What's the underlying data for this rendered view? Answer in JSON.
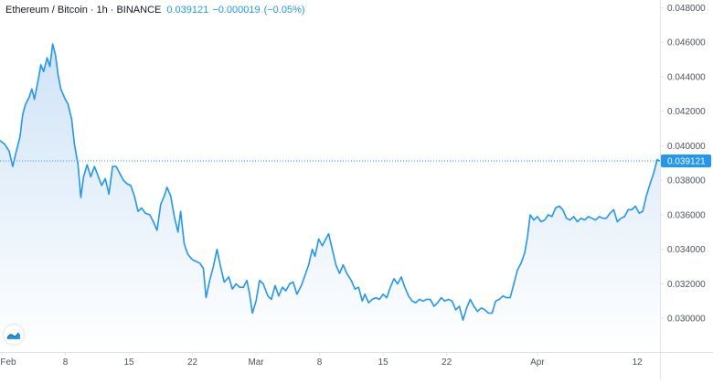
{
  "header": {
    "pair": "Ethereum / Bitcoin",
    "interval": "1h",
    "exchange": "BINANCE",
    "last_price": "0.039121",
    "change": "−0.000019",
    "change_pct": "(−0.05%)"
  },
  "colors": {
    "line": "#2196f3",
    "fill_top": "#cfe3f7",
    "fill_bottom": "#ffffff",
    "price_label_bg": "#2196f3",
    "axis_text": "#4c525e",
    "axis_border": "#e0e3eb"
  },
  "logo_icon": "tradingview-logo-icon",
  "chart_data": {
    "type": "area",
    "title": "Ethereum / Bitcoin · 1h · BINANCE",
    "ylim": [
      0.02805,
      0.04845
    ],
    "y_ticks": [
      "0.048000",
      "0.046000",
      "0.044000",
      "0.042000",
      "0.040000",
      "0.038000",
      "0.036000",
      "0.034000",
      "0.032000",
      "0.030000"
    ],
    "x_ticks": [
      {
        "label": "Feb",
        "day": 0
      },
      {
        "label": "8",
        "day": 7
      },
      {
        "label": "15",
        "day": 14
      },
      {
        "label": "22",
        "day": 21
      },
      {
        "label": "Mar",
        "day": 28
      },
      {
        "label": "8",
        "day": 35
      },
      {
        "label": "15",
        "day": 42
      },
      {
        "label": "22",
        "day": 49
      },
      {
        "label": "Apr",
        "day": 59
      },
      {
        "label": "12",
        "day": 70
      }
    ],
    "x_range_days": [
      -0.2,
      72.5
    ],
    "series": [
      {
        "points": [
          [
            -0.2,
            0.0403
          ],
          [
            0.3,
            0.0401
          ],
          [
            0.8,
            0.0397
          ],
          [
            1.2,
            0.0388
          ],
          [
            1.6,
            0.0397
          ],
          [
            2.0,
            0.0405
          ],
          [
            2.3,
            0.0418
          ],
          [
            2.6,
            0.0424
          ],
          [
            3.0,
            0.0428
          ],
          [
            3.3,
            0.0433
          ],
          [
            3.6,
            0.0427
          ],
          [
            4.0,
            0.0438
          ],
          [
            4.3,
            0.0447
          ],
          [
            4.6,
            0.0443
          ],
          [
            5.0,
            0.0451
          ],
          [
            5.3,
            0.0446
          ],
          [
            5.6,
            0.0459
          ],
          [
            5.9,
            0.0453
          ],
          [
            6.2,
            0.0441
          ],
          [
            6.5,
            0.0433
          ],
          [
            6.9,
            0.0428
          ],
          [
            7.3,
            0.0424
          ],
          [
            7.7,
            0.0415
          ],
          [
            8.0,
            0.0401
          ],
          [
            8.4,
            0.0389
          ],
          [
            8.7,
            0.037
          ],
          [
            9.0,
            0.0382
          ],
          [
            9.4,
            0.0389
          ],
          [
            9.8,
            0.0382
          ],
          [
            10.2,
            0.0388
          ],
          [
            10.5,
            0.0384
          ],
          [
            11.0,
            0.0377
          ],
          [
            11.4,
            0.0381
          ],
          [
            11.8,
            0.0372
          ],
          [
            12.2,
            0.0388
          ],
          [
            12.6,
            0.0388
          ],
          [
            13.0,
            0.0384
          ],
          [
            13.4,
            0.038
          ],
          [
            13.8,
            0.0378
          ],
          [
            14.2,
            0.0377
          ],
          [
            14.6,
            0.0371
          ],
          [
            15.0,
            0.0362
          ],
          [
            15.4,
            0.0364
          ],
          [
            15.8,
            0.0361
          ],
          [
            16.3,
            0.036
          ],
          [
            16.7,
            0.0356
          ],
          [
            17.1,
            0.0351
          ],
          [
            17.5,
            0.0366
          ],
          [
            17.9,
            0.0371
          ],
          [
            18.2,
            0.0376
          ],
          [
            18.6,
            0.0371
          ],
          [
            19.0,
            0.0359
          ],
          [
            19.4,
            0.035
          ],
          [
            19.7,
            0.0362
          ],
          [
            20.1,
            0.0343
          ],
          [
            20.5,
            0.0337
          ],
          [
            21.0,
            0.0334
          ],
          [
            21.4,
            0.0333
          ],
          [
            21.8,
            0.0332
          ],
          [
            22.2,
            0.0329
          ],
          [
            22.5,
            0.0312
          ],
          [
            22.9,
            0.0322
          ],
          [
            23.3,
            0.033
          ],
          [
            23.7,
            0.034
          ],
          [
            24.1,
            0.033
          ],
          [
            24.5,
            0.0321
          ],
          [
            25.0,
            0.0324
          ],
          [
            25.4,
            0.0317
          ],
          [
            25.8,
            0.032
          ],
          [
            26.2,
            0.0318
          ],
          [
            26.6,
            0.0318
          ],
          [
            27.0,
            0.0322
          ],
          [
            27.3,
            0.0314
          ],
          [
            27.6,
            0.0303
          ],
          [
            28.0,
            0.031
          ],
          [
            28.4,
            0.0322
          ],
          [
            28.8,
            0.032
          ],
          [
            29.3,
            0.0313
          ],
          [
            29.7,
            0.0311
          ],
          [
            30.1,
            0.0319
          ],
          [
            30.5,
            0.0313
          ],
          [
            30.9,
            0.0318
          ],
          [
            31.3,
            0.0316
          ],
          [
            31.7,
            0.032
          ],
          [
            32.1,
            0.0321
          ],
          [
            32.5,
            0.0314
          ],
          [
            33.0,
            0.0319
          ],
          [
            33.4,
            0.0325
          ],
          [
            33.8,
            0.0331
          ],
          [
            34.2,
            0.034
          ],
          [
            34.5,
            0.0336
          ],
          [
            34.9,
            0.0346
          ],
          [
            35.3,
            0.0342
          ],
          [
            35.7,
            0.0346
          ],
          [
            36.0,
            0.0349
          ],
          [
            36.4,
            0.034
          ],
          [
            36.8,
            0.0331
          ],
          [
            37.2,
            0.0326
          ],
          [
            37.6,
            0.0331
          ],
          [
            38.0,
            0.0326
          ],
          [
            38.5,
            0.0322
          ],
          [
            38.9,
            0.0317
          ],
          [
            39.3,
            0.0318
          ],
          [
            39.7,
            0.031
          ],
          [
            40.0,
            0.0314
          ],
          [
            40.4,
            0.0309
          ],
          [
            40.8,
            0.0311
          ],
          [
            41.2,
            0.0312
          ],
          [
            41.6,
            0.0311
          ],
          [
            42.0,
            0.0314
          ],
          [
            42.4,
            0.0312
          ],
          [
            42.8,
            0.0318
          ],
          [
            43.2,
            0.0323
          ],
          [
            43.6,
            0.032
          ],
          [
            44.0,
            0.0324
          ],
          [
            44.4,
            0.0318
          ],
          [
            44.8,
            0.0313
          ],
          [
            45.2,
            0.031
          ],
          [
            45.6,
            0.0309
          ],
          [
            46.0,
            0.0311
          ],
          [
            46.4,
            0.031
          ],
          [
            46.8,
            0.0311
          ],
          [
            47.2,
            0.0311
          ],
          [
            47.6,
            0.0307
          ],
          [
            48.0,
            0.0309
          ],
          [
            48.4,
            0.0312
          ],
          [
            48.8,
            0.031
          ],
          [
            49.2,
            0.0311
          ],
          [
            49.6,
            0.031
          ],
          [
            50.0,
            0.0305
          ],
          [
            50.4,
            0.0307
          ],
          [
            50.8,
            0.0299
          ],
          [
            51.2,
            0.0306
          ],
          [
            51.6,
            0.0311
          ],
          [
            52.0,
            0.0307
          ],
          [
            52.4,
            0.0304
          ],
          [
            52.8,
            0.0306
          ],
          [
            53.2,
            0.0305
          ],
          [
            53.6,
            0.0303
          ],
          [
            54.0,
            0.0303
          ],
          [
            54.4,
            0.031
          ],
          [
            54.8,
            0.0311
          ],
          [
            55.2,
            0.0313
          ],
          [
            55.6,
            0.0312
          ],
          [
            56.0,
            0.0312
          ],
          [
            56.4,
            0.032
          ],
          [
            56.8,
            0.0328
          ],
          [
            57.2,
            0.0332
          ],
          [
            57.6,
            0.0338
          ],
          [
            57.9,
            0.0347
          ],
          [
            58.2,
            0.036
          ],
          [
            58.6,
            0.0357
          ],
          [
            59.0,
            0.0359
          ],
          [
            59.4,
            0.0356
          ],
          [
            59.8,
            0.0357
          ],
          [
            60.2,
            0.036
          ],
          [
            60.6,
            0.0359
          ],
          [
            61.0,
            0.0364
          ],
          [
            61.4,
            0.0365
          ],
          [
            61.8,
            0.0363
          ],
          [
            62.2,
            0.0358
          ],
          [
            62.6,
            0.0357
          ],
          [
            63.0,
            0.0359
          ],
          [
            63.4,
            0.0356
          ],
          [
            63.8,
            0.0358
          ],
          [
            64.2,
            0.0357
          ],
          [
            64.6,
            0.0359
          ],
          [
            65.0,
            0.0358
          ],
          [
            65.4,
            0.0357
          ],
          [
            65.8,
            0.0359
          ],
          [
            66.2,
            0.0358
          ],
          [
            66.6,
            0.0358
          ],
          [
            67.0,
            0.0361
          ],
          [
            67.4,
            0.0363
          ],
          [
            67.8,
            0.0356
          ],
          [
            68.2,
            0.0358
          ],
          [
            68.6,
            0.0359
          ],
          [
            69.0,
            0.0363
          ],
          [
            69.4,
            0.0363
          ],
          [
            69.8,
            0.0365
          ],
          [
            70.2,
            0.0361
          ],
          [
            70.6,
            0.0362
          ],
          [
            71.0,
            0.0371
          ],
          [
            71.4,
            0.0378
          ],
          [
            71.8,
            0.0384
          ],
          [
            72.2,
            0.0392
          ],
          [
            72.5,
            0.039121
          ]
        ]
      }
    ],
    "last_value_label": "0.039121",
    "grid": false,
    "last_value_line": "dotted"
  }
}
